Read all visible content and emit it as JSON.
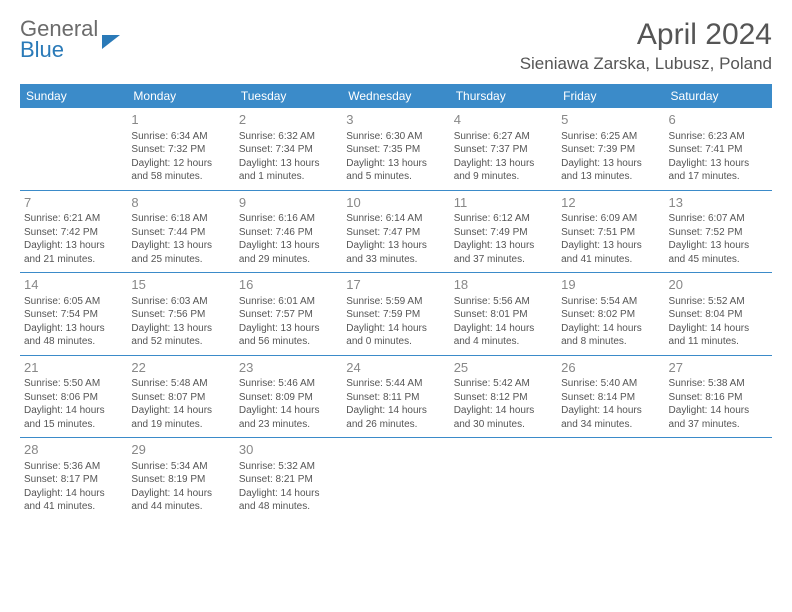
{
  "logo": {
    "line1": "General",
    "line2": "Blue"
  },
  "title": "April 2024",
  "location": "Sieniawa Zarska, Lubusz, Poland",
  "colors": {
    "header_bg": "#3b8bc9",
    "header_text": "#ffffff",
    "body_text": "#555555",
    "daynum_text": "#888888",
    "border": "#3b8bc9",
    "logo_gray": "#6b6b6b",
    "logo_blue": "#2a7ab8",
    "background": "#ffffff"
  },
  "day_headers": [
    "Sunday",
    "Monday",
    "Tuesday",
    "Wednesday",
    "Thursday",
    "Friday",
    "Saturday"
  ],
  "weeks": [
    [
      null,
      {
        "n": "1",
        "sr": "6:34 AM",
        "ss": "7:32 PM",
        "dl": "12 hours and 58 minutes."
      },
      {
        "n": "2",
        "sr": "6:32 AM",
        "ss": "7:34 PM",
        "dl": "13 hours and 1 minutes."
      },
      {
        "n": "3",
        "sr": "6:30 AM",
        "ss": "7:35 PM",
        "dl": "13 hours and 5 minutes."
      },
      {
        "n": "4",
        "sr": "6:27 AM",
        "ss": "7:37 PM",
        "dl": "13 hours and 9 minutes."
      },
      {
        "n": "5",
        "sr": "6:25 AM",
        "ss": "7:39 PM",
        "dl": "13 hours and 13 minutes."
      },
      {
        "n": "6",
        "sr": "6:23 AM",
        "ss": "7:41 PM",
        "dl": "13 hours and 17 minutes."
      }
    ],
    [
      {
        "n": "7",
        "sr": "6:21 AM",
        "ss": "7:42 PM",
        "dl": "13 hours and 21 minutes."
      },
      {
        "n": "8",
        "sr": "6:18 AM",
        "ss": "7:44 PM",
        "dl": "13 hours and 25 minutes."
      },
      {
        "n": "9",
        "sr": "6:16 AM",
        "ss": "7:46 PM",
        "dl": "13 hours and 29 minutes."
      },
      {
        "n": "10",
        "sr": "6:14 AM",
        "ss": "7:47 PM",
        "dl": "13 hours and 33 minutes."
      },
      {
        "n": "11",
        "sr": "6:12 AM",
        "ss": "7:49 PM",
        "dl": "13 hours and 37 minutes."
      },
      {
        "n": "12",
        "sr": "6:09 AM",
        "ss": "7:51 PM",
        "dl": "13 hours and 41 minutes."
      },
      {
        "n": "13",
        "sr": "6:07 AM",
        "ss": "7:52 PM",
        "dl": "13 hours and 45 minutes."
      }
    ],
    [
      {
        "n": "14",
        "sr": "6:05 AM",
        "ss": "7:54 PM",
        "dl": "13 hours and 48 minutes."
      },
      {
        "n": "15",
        "sr": "6:03 AM",
        "ss": "7:56 PM",
        "dl": "13 hours and 52 minutes."
      },
      {
        "n": "16",
        "sr": "6:01 AM",
        "ss": "7:57 PM",
        "dl": "13 hours and 56 minutes."
      },
      {
        "n": "17",
        "sr": "5:59 AM",
        "ss": "7:59 PM",
        "dl": "14 hours and 0 minutes."
      },
      {
        "n": "18",
        "sr": "5:56 AM",
        "ss": "8:01 PM",
        "dl": "14 hours and 4 minutes."
      },
      {
        "n": "19",
        "sr": "5:54 AM",
        "ss": "8:02 PM",
        "dl": "14 hours and 8 minutes."
      },
      {
        "n": "20",
        "sr": "5:52 AM",
        "ss": "8:04 PM",
        "dl": "14 hours and 11 minutes."
      }
    ],
    [
      {
        "n": "21",
        "sr": "5:50 AM",
        "ss": "8:06 PM",
        "dl": "14 hours and 15 minutes."
      },
      {
        "n": "22",
        "sr": "5:48 AM",
        "ss": "8:07 PM",
        "dl": "14 hours and 19 minutes."
      },
      {
        "n": "23",
        "sr": "5:46 AM",
        "ss": "8:09 PM",
        "dl": "14 hours and 23 minutes."
      },
      {
        "n": "24",
        "sr": "5:44 AM",
        "ss": "8:11 PM",
        "dl": "14 hours and 26 minutes."
      },
      {
        "n": "25",
        "sr": "5:42 AM",
        "ss": "8:12 PM",
        "dl": "14 hours and 30 minutes."
      },
      {
        "n": "26",
        "sr": "5:40 AM",
        "ss": "8:14 PM",
        "dl": "14 hours and 34 minutes."
      },
      {
        "n": "27",
        "sr": "5:38 AM",
        "ss": "8:16 PM",
        "dl": "14 hours and 37 minutes."
      }
    ],
    [
      {
        "n": "28",
        "sr": "5:36 AM",
        "ss": "8:17 PM",
        "dl": "14 hours and 41 minutes."
      },
      {
        "n": "29",
        "sr": "5:34 AM",
        "ss": "8:19 PM",
        "dl": "14 hours and 44 minutes."
      },
      {
        "n": "30",
        "sr": "5:32 AM",
        "ss": "8:21 PM",
        "dl": "14 hours and 48 minutes."
      },
      null,
      null,
      null,
      null
    ]
  ],
  "labels": {
    "sunrise": "Sunrise:",
    "sunset": "Sunset:",
    "daylight": "Daylight:"
  }
}
